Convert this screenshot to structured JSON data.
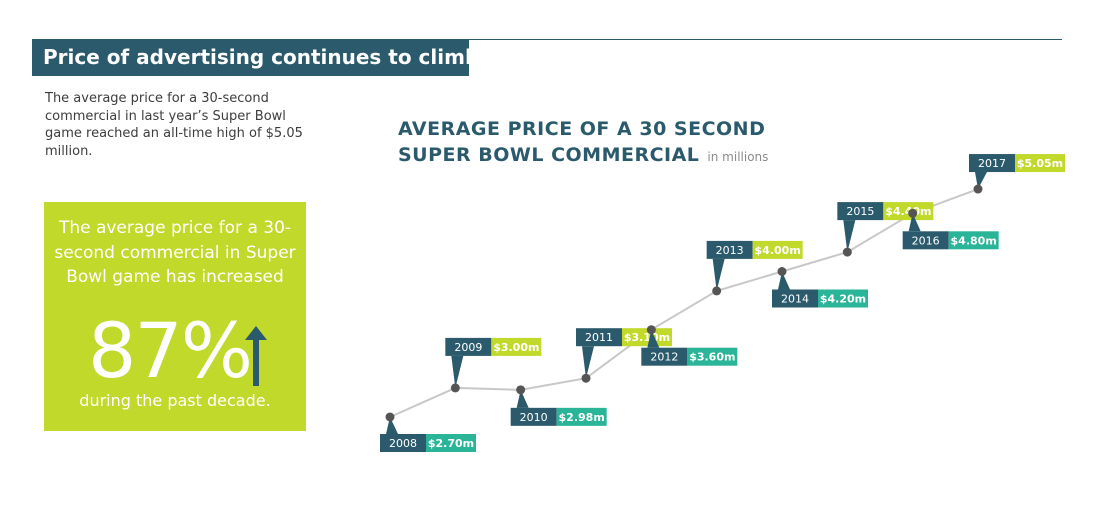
{
  "header": {
    "title": "Price of advertising continues to climb"
  },
  "intro": {
    "text": "The average price for a 30-second commercial in last year’s Super Bowl game reached an all-time high of $5.05 million."
  },
  "stat_box": {
    "text": "The average price for a 30-second commercial in Super Bowl game has increased",
    "value": "87%",
    "footer": "during the past decade.",
    "arrow_icon": "up-arrow-icon"
  },
  "colors": {
    "dark_teal": "#2a5a6c",
    "lime": "#c1d92a",
    "teal": "#2ab598",
    "line": "#c8c8c8",
    "dot": "#555555"
  },
  "chart_data": {
    "type": "line",
    "title_line1": "AVERAGE PRICE OF A 30 SECOND",
    "title_line2": "SUPER BOWL COMMERCIAL",
    "unit": "in millions",
    "x": [
      "2008",
      "2009",
      "2010",
      "2011",
      "2012",
      "2013",
      "2014",
      "2015",
      "2016",
      "2017"
    ],
    "values": [
      2.7,
      3.0,
      2.98,
      3.1,
      3.6,
      4.0,
      4.2,
      4.4,
      4.8,
      5.05
    ],
    "value_labels": [
      "$2.70m",
      "$3.00m",
      "$2.98m",
      "$3.10m",
      "$3.60m",
      "$4.00m",
      "$4.20m",
      "$4.40m",
      "$4.80m",
      "$5.05m"
    ]
  }
}
